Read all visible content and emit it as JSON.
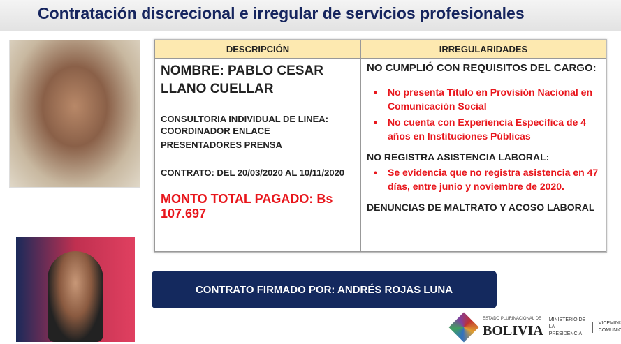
{
  "title": "Contratación discrecional e irregular de servicios profesionales",
  "table": {
    "headers": [
      "DESCRIPCIÓN",
      "IRREGULARIDADES"
    ],
    "description": {
      "name": "NOMBRE: PABLO CESAR LLANO CUELLAR",
      "consultancy_label": "CONSULTORIA INDIVIDUAL DE LINEA:",
      "consultancy_role": "COORDINADOR ENLACE PRESENTADORES PRENSA",
      "contract": "CONTRATO: DEL 20/03/2020 AL 10/11/2020",
      "total": "MONTO TOTAL PAGADO: Bs 107.697"
    },
    "irregularities": {
      "req_title": "NO CUMPLIÓ CON REQUISITOS DEL CARGO:",
      "req_items": [
        "No presenta Titulo en Provisión Nacional en Comunicación Social",
        "No cuenta con Experiencia Específica de 4 años en Instituciones Públicas"
      ],
      "att_title": "NO REGISTRA ASISTENCIA LABORAL:",
      "att_items": [
        "Se evidencia que no registra asistencia en 47 días, entre junio y noviembre de 2020."
      ],
      "abuse": "DENUNCIAS DE MALTRATO Y ACOSO LABORAL"
    }
  },
  "banner": "CONTRATO FIRMADO POR: ANDRÉS ROJAS LUNA",
  "footer": {
    "state": "ESTADO PLURINACIONAL DE",
    "country": "BOLIVIA",
    "ministry": "MINISTERIO DE LA PRESIDENCIA",
    "vice": "VICEMINISTERIO DE COMUNICACIÓN"
  },
  "colors": {
    "title": "#16255e",
    "header": "#fde9b0",
    "red": "#e8161c",
    "banner": "#14295e"
  }
}
